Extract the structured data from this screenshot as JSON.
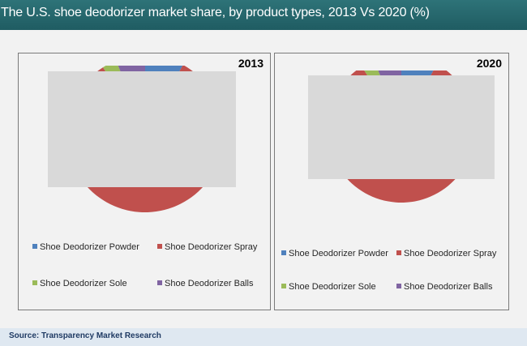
{
  "header": {
    "title": "The U.S. shoe deodorizer market share, by product types, 2013 Vs 2020 (%)"
  },
  "colors": {
    "title_bar": "#27686e",
    "powder": "#4f81bd",
    "spray": "#c0504d",
    "sole": "#9bbb59",
    "balls": "#8064a2",
    "overlay": "#d9d9d9"
  },
  "chart_data": [
    {
      "type": "pie",
      "title": "2013",
      "series": [
        {
          "name": "Shoe Deodorizer Powder",
          "value": 8
        },
        {
          "name": "Shoe Deodorizer Spray",
          "value": 83
        },
        {
          "name": "Shoe Deodorizer Sole",
          "value": 3
        },
        {
          "name": "Shoe Deodorizer Balls",
          "value": 6
        }
      ],
      "legend": "bottom"
    },
    {
      "type": "pie",
      "title": "2020",
      "series": [
        {
          "name": "Shoe Deodorizer Powder",
          "value": 8
        },
        {
          "name": "Shoe Deodorizer Spray",
          "value": 83
        },
        {
          "name": "Shoe Deodorizer Sole",
          "value": 3
        },
        {
          "name": "Shoe Deodorizer Balls",
          "value": 6
        }
      ],
      "legend": "bottom"
    }
  ],
  "footer": {
    "source": "Source: Transparency Market Research"
  }
}
